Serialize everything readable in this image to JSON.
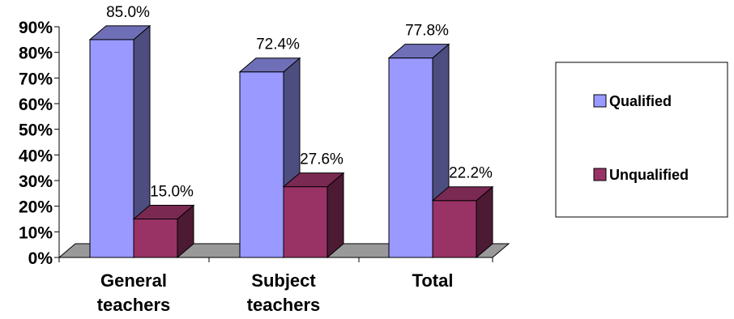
{
  "chart_data": {
    "type": "bar",
    "categories": [
      [
        "General",
        "teachers"
      ],
      [
        "Subject",
        "teachers"
      ],
      [
        "Total"
      ]
    ],
    "series": [
      {
        "name": "Qualified",
        "values": [
          85.0,
          72.4,
          77.8
        ],
        "labels": [
          "85.0%",
          "72.4%",
          "77.8%"
        ]
      },
      {
        "name": "Unqualified",
        "values": [
          15.0,
          27.6,
          22.2
        ],
        "labels": [
          "15.0%",
          "27.6%",
          "22.2%"
        ]
      }
    ],
    "y_ticks": [
      "0%",
      "10%",
      "20%",
      "30%",
      "40%",
      "50%",
      "60%",
      "70%",
      "80%",
      "90%"
    ],
    "ylim": [
      0,
      90
    ],
    "style": "3d-clustered-column",
    "legend_position": "right",
    "colors": {
      "Qualified": {
        "front": "#9999ff",
        "side": "#4d4d80",
        "top": "#6f6fb8"
      },
      "Unqualified": {
        "front": "#993366",
        "side": "#4d1a33",
        "top": "#7a2952"
      },
      "floor": "#999999"
    }
  }
}
